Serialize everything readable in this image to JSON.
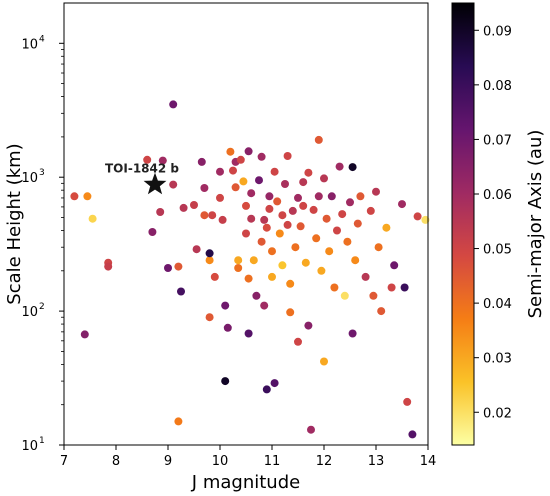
{
  "chart_data": {
    "type": "scatter",
    "xlabel": "J magnitude",
    "ylabel": "Scale Height (km)",
    "yscale": "log",
    "xlim": [
      7,
      14
    ],
    "ylim": [
      10,
      20000
    ],
    "x_ticks": [
      "7",
      "8",
      "9",
      "10",
      "11",
      "12",
      "13",
      "14"
    ],
    "y_ticks": [
      {
        "value": 10,
        "base": "10",
        "exp": "1"
      },
      {
        "value": 100,
        "base": "10",
        "exp": "2"
      },
      {
        "value": 1000,
        "base": "10",
        "exp": "3"
      },
      {
        "value": 10000,
        "base": "10",
        "exp": "4"
      }
    ],
    "colorbar": {
      "label": "Semi-major Axis (au)",
      "colormap": "inferno_r",
      "range": [
        0.014,
        0.095
      ],
      "ticks": [
        "0.02",
        "0.03",
        "0.04",
        "0.05",
        "0.06",
        "0.07",
        "0.08",
        "0.09"
      ],
      "stops": [
        "#fcffa4",
        "#fac228",
        "#f57d15",
        "#d44842",
        "#9f2a63",
        "#65156e",
        "#280b53",
        "#000004"
      ]
    },
    "highlight": {
      "name": "TOI-1842 b",
      "x": 8.75,
      "y": 880,
      "marker": "star",
      "color": "#111111"
    },
    "points": [
      {
        "x": 7.2,
        "y": 720,
        "a": 0.048
      },
      {
        "x": 7.45,
        "y": 720,
        "a": 0.035
      },
      {
        "x": 7.55,
        "y": 490,
        "a": 0.022
      },
      {
        "x": 7.4,
        "y": 67,
        "a": 0.066
      },
      {
        "x": 7.85,
        "y": 230,
        "a": 0.05
      },
      {
        "x": 7.85,
        "y": 215,
        "a": 0.052
      },
      {
        "x": 8.6,
        "y": 1350,
        "a": 0.05
      },
      {
        "x": 8.9,
        "y": 1330,
        "a": 0.06
      },
      {
        "x": 8.7,
        "y": 390,
        "a": 0.065
      },
      {
        "x": 8.85,
        "y": 550,
        "a": 0.055
      },
      {
        "x": 9.1,
        "y": 3500,
        "a": 0.07
      },
      {
        "x": 9.1,
        "y": 880,
        "a": 0.055
      },
      {
        "x": 9.0,
        "y": 210,
        "a": 0.07
      },
      {
        "x": 9.2,
        "y": 215,
        "a": 0.045
      },
      {
        "x": 9.25,
        "y": 140,
        "a": 0.078
      },
      {
        "x": 9.2,
        "y": 15,
        "a": 0.038
      },
      {
        "x": 9.3,
        "y": 590,
        "a": 0.055
      },
      {
        "x": 9.5,
        "y": 620,
        "a": 0.052
      },
      {
        "x": 9.55,
        "y": 290,
        "a": 0.055
      },
      {
        "x": 9.65,
        "y": 1300,
        "a": 0.065
      },
      {
        "x": 9.7,
        "y": 830,
        "a": 0.06
      },
      {
        "x": 9.7,
        "y": 520,
        "a": 0.045
      },
      {
        "x": 9.8,
        "y": 240,
        "a": 0.035
      },
      {
        "x": 9.85,
        "y": 520,
        "a": 0.05
      },
      {
        "x": 9.8,
        "y": 270,
        "a": 0.085
      },
      {
        "x": 9.8,
        "y": 90,
        "a": 0.045
      },
      {
        "x": 9.9,
        "y": 180,
        "a": 0.048
      },
      {
        "x": 10.0,
        "y": 1100,
        "a": 0.06
      },
      {
        "x": 10.0,
        "y": 700,
        "a": 0.05
      },
      {
        "x": 10.05,
        "y": 480,
        "a": 0.052
      },
      {
        "x": 10.1,
        "y": 110,
        "a": 0.07
      },
      {
        "x": 10.1,
        "y": 30,
        "a": 0.09
      },
      {
        "x": 10.15,
        "y": 75,
        "a": 0.068
      },
      {
        "x": 10.2,
        "y": 1550,
        "a": 0.04
      },
      {
        "x": 10.25,
        "y": 1120,
        "a": 0.05
      },
      {
        "x": 10.3,
        "y": 1300,
        "a": 0.06
      },
      {
        "x": 10.3,
        "y": 840,
        "a": 0.045
      },
      {
        "x": 10.35,
        "y": 210,
        "a": 0.04
      },
      {
        "x": 10.35,
        "y": 240,
        "a": 0.03
      },
      {
        "x": 10.4,
        "y": 1350,
        "a": 0.05
      },
      {
        "x": 10.45,
        "y": 930,
        "a": 0.03
      },
      {
        "x": 10.5,
        "y": 610,
        "a": 0.048
      },
      {
        "x": 10.5,
        "y": 380,
        "a": 0.05
      },
      {
        "x": 10.55,
        "y": 1560,
        "a": 0.065
      },
      {
        "x": 10.55,
        "y": 175,
        "a": 0.04
      },
      {
        "x": 10.55,
        "y": 68,
        "a": 0.075
      },
      {
        "x": 10.6,
        "y": 490,
        "a": 0.055
      },
      {
        "x": 10.6,
        "y": 760,
        "a": 0.06
      },
      {
        "x": 10.65,
        "y": 240,
        "a": 0.03
      },
      {
        "x": 10.7,
        "y": 130,
        "a": 0.065
      },
      {
        "x": 10.75,
        "y": 950,
        "a": 0.07
      },
      {
        "x": 10.8,
        "y": 1420,
        "a": 0.06
      },
      {
        "x": 10.8,
        "y": 330,
        "a": 0.045
      },
      {
        "x": 10.85,
        "y": 480,
        "a": 0.055
      },
      {
        "x": 10.85,
        "y": 110,
        "a": 0.06
      },
      {
        "x": 10.9,
        "y": 26,
        "a": 0.08
      },
      {
        "x": 10.95,
        "y": 720,
        "a": 0.062
      },
      {
        "x": 10.95,
        "y": 580,
        "a": 0.05
      },
      {
        "x": 11.0,
        "y": 280,
        "a": 0.04
      },
      {
        "x": 11.0,
        "y": 180,
        "a": 0.03
      },
      {
        "x": 11.05,
        "y": 1100,
        "a": 0.05
      },
      {
        "x": 11.05,
        "y": 29,
        "a": 0.075
      },
      {
        "x": 11.1,
        "y": 660,
        "a": 0.045
      },
      {
        "x": 11.15,
        "y": 380,
        "a": 0.035
      },
      {
        "x": 11.2,
        "y": 220,
        "a": 0.025
      },
      {
        "x": 11.25,
        "y": 890,
        "a": 0.058
      },
      {
        "x": 11.3,
        "y": 1440,
        "a": 0.05
      },
      {
        "x": 11.3,
        "y": 440,
        "a": 0.05
      },
      {
        "x": 11.35,
        "y": 160,
        "a": 0.035
      },
      {
        "x": 11.35,
        "y": 98,
        "a": 0.04
      },
      {
        "x": 11.4,
        "y": 560,
        "a": 0.055
      },
      {
        "x": 11.45,
        "y": 300,
        "a": 0.04
      },
      {
        "x": 11.5,
        "y": 700,
        "a": 0.06
      },
      {
        "x": 11.5,
        "y": 59,
        "a": 0.05
      },
      {
        "x": 11.55,
        "y": 430,
        "a": 0.045
      },
      {
        "x": 11.6,
        "y": 920,
        "a": 0.055
      },
      {
        "x": 11.65,
        "y": 230,
        "a": 0.03
      },
      {
        "x": 11.7,
        "y": 1080,
        "a": 0.05
      },
      {
        "x": 11.7,
        "y": 78,
        "a": 0.065
      },
      {
        "x": 11.75,
        "y": 13,
        "a": 0.06
      },
      {
        "x": 11.8,
        "y": 570,
        "a": 0.05
      },
      {
        "x": 11.85,
        "y": 350,
        "a": 0.04
      },
      {
        "x": 11.9,
        "y": 1900,
        "a": 0.045
      },
      {
        "x": 11.9,
        "y": 720,
        "a": 0.06
      },
      {
        "x": 11.95,
        "y": 200,
        "a": 0.03
      },
      {
        "x": 12.0,
        "y": 980,
        "a": 0.055
      },
      {
        "x": 12.0,
        "y": 42,
        "a": 0.03
      },
      {
        "x": 12.05,
        "y": 490,
        "a": 0.045
      },
      {
        "x": 12.1,
        "y": 280,
        "a": 0.035
      },
      {
        "x": 12.15,
        "y": 720,
        "a": 0.065
      },
      {
        "x": 12.2,
        "y": 150,
        "a": 0.04
      },
      {
        "x": 12.25,
        "y": 400,
        "a": 0.05
      },
      {
        "x": 12.3,
        "y": 1200,
        "a": 0.06
      },
      {
        "x": 12.35,
        "y": 530,
        "a": 0.05
      },
      {
        "x": 12.4,
        "y": 130,
        "a": 0.02
      },
      {
        "x": 12.45,
        "y": 330,
        "a": 0.04
      },
      {
        "x": 12.5,
        "y": 650,
        "a": 0.06
      },
      {
        "x": 12.55,
        "y": 1190,
        "a": 0.09
      },
      {
        "x": 12.55,
        "y": 68,
        "a": 0.07
      },
      {
        "x": 12.6,
        "y": 240,
        "a": 0.035
      },
      {
        "x": 12.65,
        "y": 450,
        "a": 0.045
      },
      {
        "x": 12.7,
        "y": 720,
        "a": 0.045
      },
      {
        "x": 12.8,
        "y": 180,
        "a": 0.055
      },
      {
        "x": 12.9,
        "y": 560,
        "a": 0.05
      },
      {
        "x": 13.0,
        "y": 780,
        "a": 0.055
      },
      {
        "x": 13.05,
        "y": 300,
        "a": 0.04
      },
      {
        "x": 13.1,
        "y": 100,
        "a": 0.045
      },
      {
        "x": 13.2,
        "y": 420,
        "a": 0.03
      },
      {
        "x": 13.3,
        "y": 150,
        "a": 0.05
      },
      {
        "x": 13.35,
        "y": 220,
        "a": 0.07
      },
      {
        "x": 13.5,
        "y": 630,
        "a": 0.06
      },
      {
        "x": 13.55,
        "y": 150,
        "a": 0.08
      },
      {
        "x": 13.6,
        "y": 21,
        "a": 0.05
      },
      {
        "x": 13.7,
        "y": 12,
        "a": 0.075
      },
      {
        "x": 13.8,
        "y": 510,
        "a": 0.05
      },
      {
        "x": 13.95,
        "y": 480,
        "a": 0.02
      },
      {
        "x": 12.95,
        "y": 130,
        "a": 0.045
      },
      {
        "x": 11.6,
        "y": 610,
        "a": 0.05
      },
      {
        "x": 11.2,
        "y": 520,
        "a": 0.05
      },
      {
        "x": 10.9,
        "y": 420,
        "a": 0.048
      }
    ]
  }
}
